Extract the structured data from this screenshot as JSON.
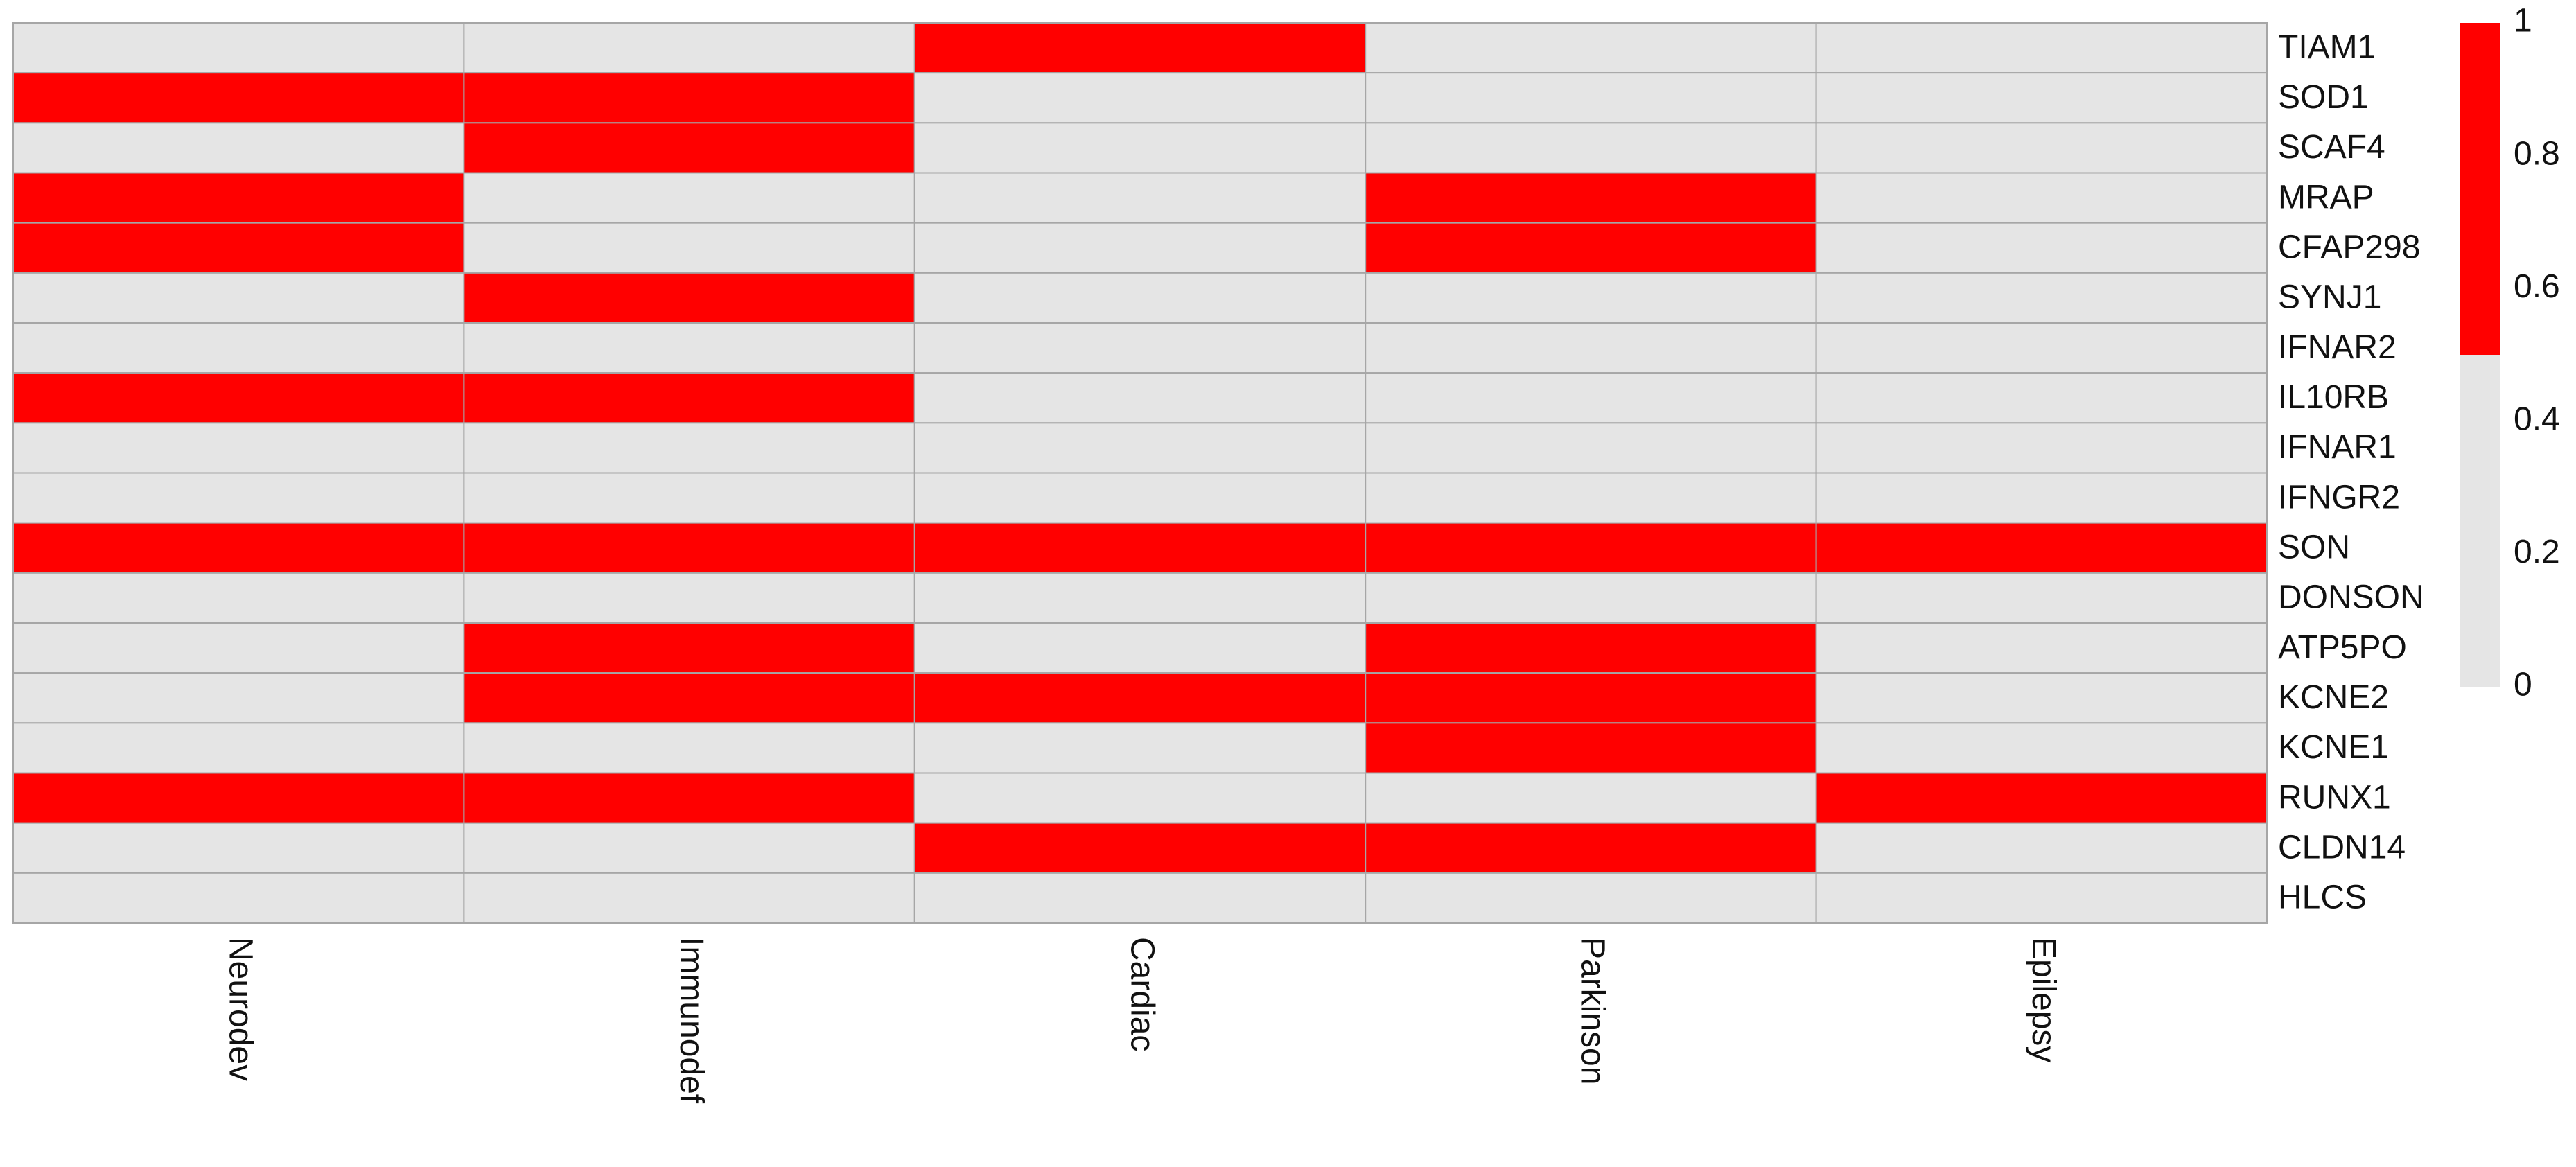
{
  "chart_data": {
    "type": "heatmap",
    "columns": [
      "Neurodev",
      "Immunodef",
      "Cardiac",
      "Parkinson",
      "Epilepsy"
    ],
    "rows": [
      "TIAM1",
      "SOD1",
      "SCAF4",
      "MRAP",
      "CFAP298",
      "SYNJ1",
      "IFNAR2",
      "IL10RB",
      "IFNAR1",
      "IFNGR2",
      "SON",
      "DONSON",
      "ATP5PO",
      "KCNE2",
      "KCNE1",
      "RUNX1",
      "CLDN14",
      "HLCS"
    ],
    "values": [
      [
        0,
        0,
        1,
        0,
        0
      ],
      [
        1,
        1,
        0,
        0,
        0
      ],
      [
        0,
        1,
        0,
        0,
        0
      ],
      [
        1,
        0,
        0,
        1,
        0
      ],
      [
        1,
        0,
        0,
        1,
        0
      ],
      [
        0,
        1,
        0,
        0,
        0
      ],
      [
        0,
        0,
        0,
        0,
        0
      ],
      [
        1,
        1,
        0,
        0,
        0
      ],
      [
        0,
        0,
        0,
        0,
        0
      ],
      [
        0,
        0,
        0,
        0,
        0
      ],
      [
        1,
        1,
        1,
        1,
        1
      ],
      [
        0,
        0,
        0,
        0,
        0
      ],
      [
        0,
        1,
        0,
        1,
        0
      ],
      [
        0,
        1,
        1,
        1,
        0
      ],
      [
        0,
        0,
        0,
        1,
        0
      ],
      [
        1,
        1,
        0,
        0,
        1
      ],
      [
        0,
        0,
        1,
        1,
        0
      ],
      [
        0,
        0,
        0,
        0,
        0
      ]
    ],
    "colors": [
      "#e5e5e5",
      "#ff0000"
    ],
    "zlim": [
      0,
      1
    ],
    "zticks": [
      0,
      0.2,
      0.4,
      0.6,
      0.8,
      1
    ]
  }
}
